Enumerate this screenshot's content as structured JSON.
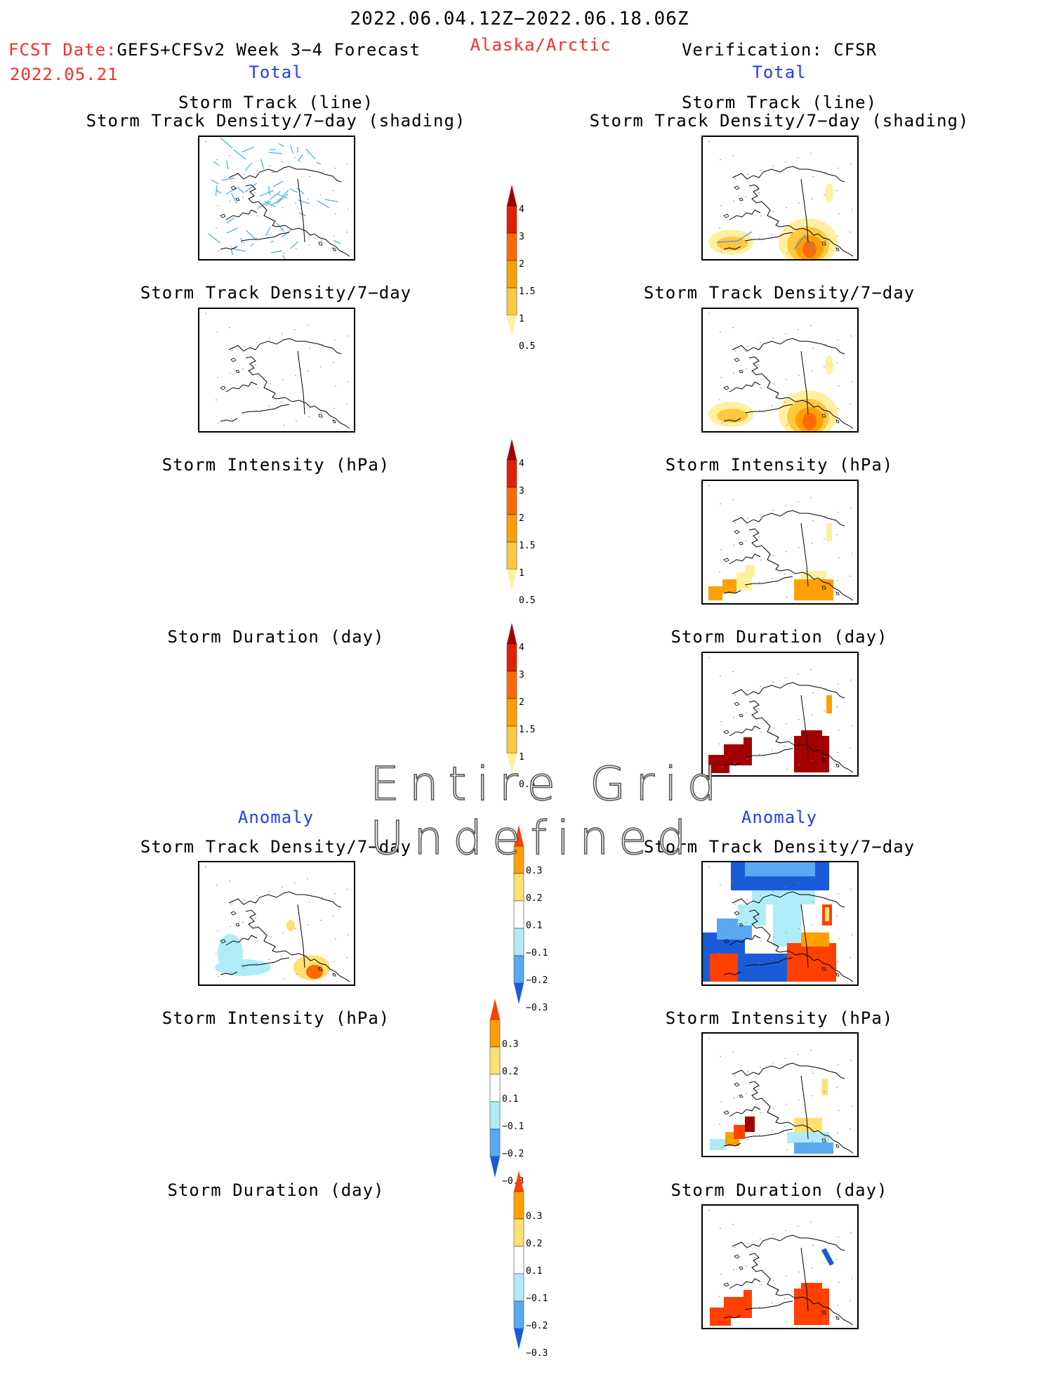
{
  "header": {
    "date_range": "2022.06.04.12Z−2022.06.18.06Z",
    "fcst_label": "FCST Date:",
    "fcst_model": "GEFS+CFSv2 Week 3−4 Forecast",
    "fcst_date": "2022.05.21",
    "region": "Alaska/Arctic",
    "verification": "Verification: CFSR"
  },
  "sections": {
    "total_left": "Total",
    "total_right": "Total",
    "anomaly_left": "Anomaly",
    "anomaly_right": "Anomaly"
  },
  "titles": {
    "track_line": "Storm Track (line)",
    "track_shading": "Storm Track Density/7−day (shading)",
    "density": "Storm Track Density/7−day",
    "intensity": "Storm Intensity (hPa)",
    "duration": "Storm Duration (day)"
  },
  "undefined_message": "Entire Grid Undefined",
  "colorbars": {
    "total": {
      "labels": [
        "4",
        "3",
        "2",
        "1.5",
        "1",
        "0.5"
      ],
      "colors": [
        "#a50000",
        "#e02000",
        "#ff6a00",
        "#ffa000",
        "#ffc840",
        "#fff0a0"
      ]
    },
    "anomaly": {
      "labels": [
        "0.3",
        "0.2",
        "0.1",
        "−0.1",
        "−0.2",
        "−0.3"
      ],
      "colors": [
        "#ff4000",
        "#ffa000",
        "#ffe070",
        "#ffffff",
        "#b0ecf8",
        "#5aa8f0",
        "#1a5cd8"
      ]
    }
  },
  "map_fields": {
    "fcst_track": "storm-track-lines",
    "obs_track": "density-shading-with-tracks",
    "fcst_density": "empty",
    "obs_density": "density-shading",
    "obs_intensity": "intensity-blocks",
    "obs_duration": "duration-blocks",
    "fcst_density_anom": "anomaly-light",
    "obs_density_anom": "anomaly-strong",
    "obs_intensity_anom": "anomaly-mixed",
    "obs_duration_anom": "anomaly-warm"
  }
}
